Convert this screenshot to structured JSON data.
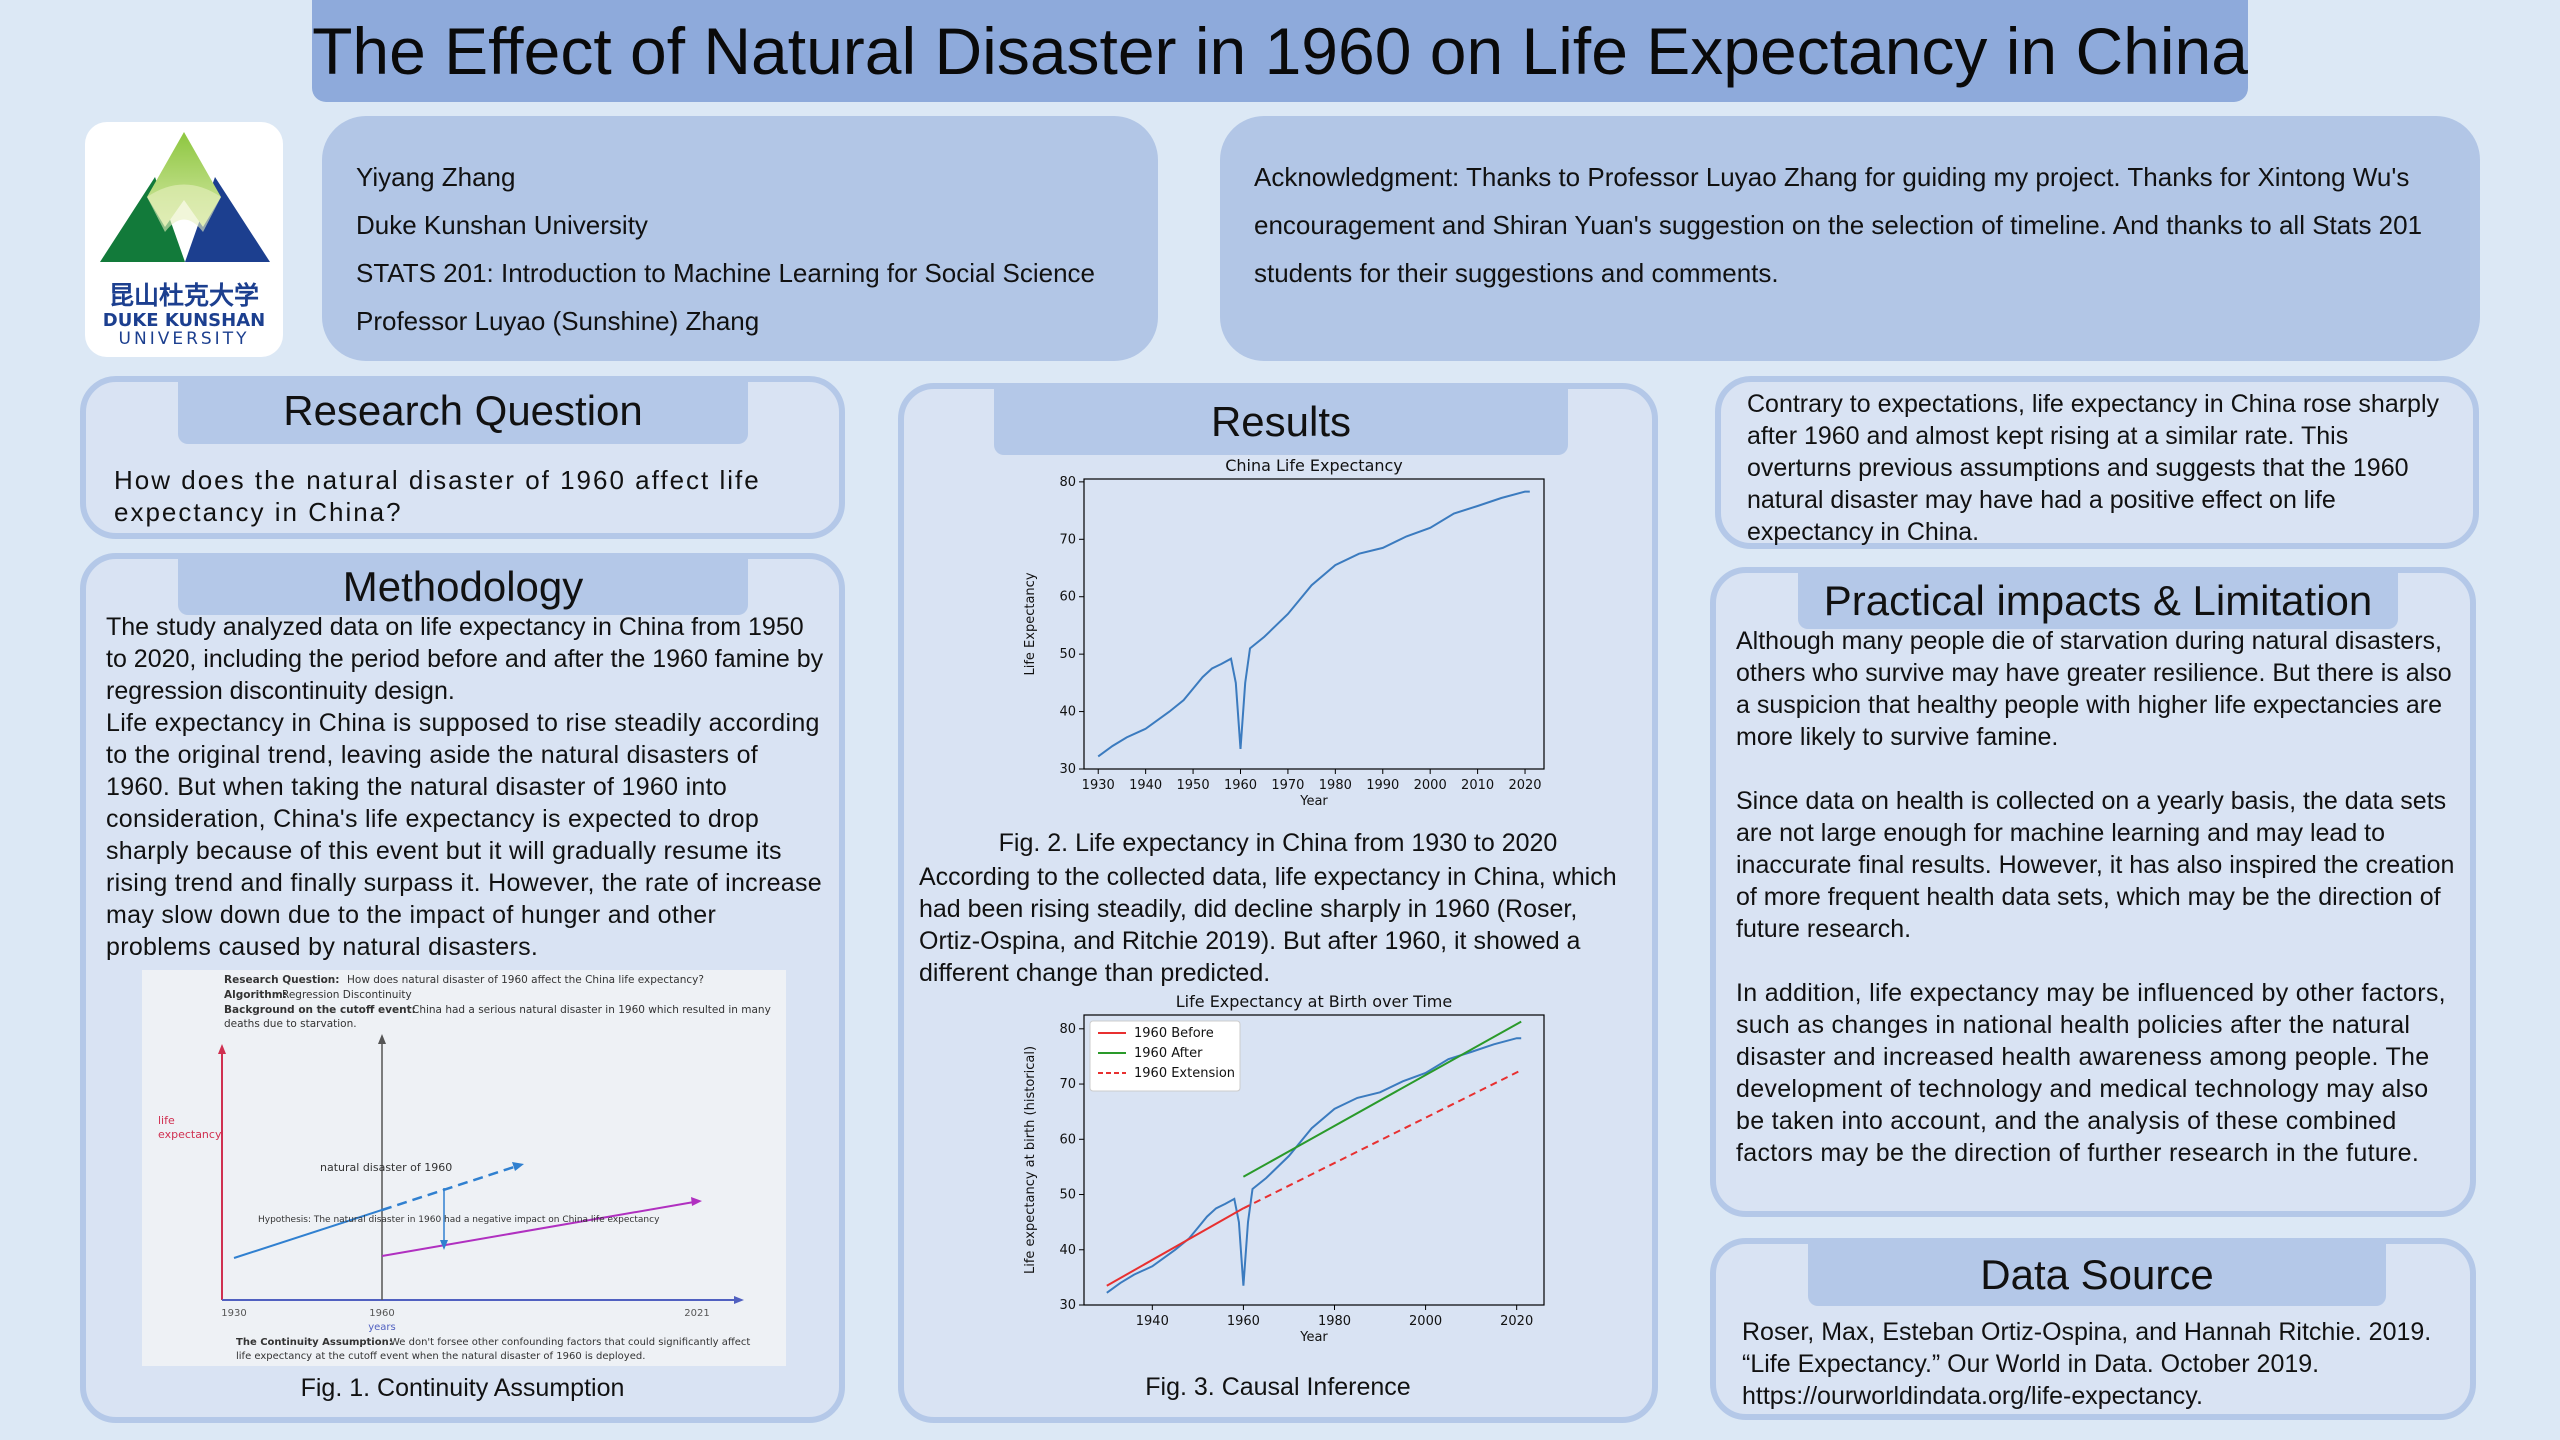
{
  "title": "The Effect of Natural Disaster in 1960 on Life Expectancy in China",
  "logo": {
    "chinese": "昆山杜克大学",
    "line1": "DUKE KUNSHAN",
    "line2": "UNIVERSITY"
  },
  "author": {
    "name": "Yiyang Zhang",
    "school": "Duke Kunshan University",
    "course": "STATS 201: Introduction to Machine Learning for Social Science",
    "professor": "Professor Luyao (Sunshine) Zhang"
  },
  "acknowledgment": "Acknowledgment: Thanks to Professor Luyao Zhang for guiding my project. Thanks for Xintong Wu's encouragement and Shiran Yuan's suggestion on the selection of timeline. And thanks to all Stats 201 students for their suggestions and comments.",
  "research_question": {
    "heading": "Research Question",
    "text": "How does the natural disaster of 1960 affect life expectancy in China?"
  },
  "methodology": {
    "heading": "Methodology",
    "p1": "The study analyzed data on life expectancy in China from 1950 to 2020, including the period before and after the 1960 famine by regression discontinuity design.",
    "p2": "Life expectancy in China is supposed to rise steadily according to the original trend, leaving aside the natural disasters of 1960. But when taking the natural disaster of 1960 into consideration, China's life expectancy is expected to drop sharply because of this event but it will gradually resume its rising trend and finally surpass it. However, the rate of increase may slow down due to the impact of hunger and other problems caused by natural disasters.",
    "fig1_caption": "Fig. 1. Continuity Assumption",
    "fig1": {
      "rq_label": "Research Question:",
      "rq": "How does natural disaster of 1960 affect the China life expectancy?",
      "algo_label": "Algorithm:",
      "algo": "Regression Discontinuity",
      "bg_label": "Background on the cutoff event:",
      "bg": "China had a serious natural disaster in 1960 which resulted in many",
      "bg2": "deaths due to starvation.",
      "ylabel1": "life",
      "ylabel2": "expectancy",
      "event": "natural disaster of 1960",
      "hypothesis": "Hypothesis: The natural disaster in 1960 had a negative impact on China life expectancy",
      "xticks": [
        "1930",
        "1960",
        "2021"
      ],
      "xlabel": "years",
      "cont_label": "The Continuity Assumption:",
      "cont": "We don't forsee other confounding factors that could significantly affect",
      "cont2": "life expectancy at the cutoff event when the natural disaster of 1960 is deployed."
    }
  },
  "results": {
    "heading": "Results",
    "fig2_caption": "Fig. 2. Life expectancy in China from 1930 to 2020",
    "text": "According to the collected data, life expectancy in China, which had been rising steadily, did decline sharply in 1960 (Roser, Ortiz-Ospina, and Ritchie 2019). But after 1960, it showed a different change than predicted.",
    "fig3_caption": "Fig. 3. Causal Inference"
  },
  "conclusion": "Contrary to expectations, life expectancy in China rose sharply after 1960 and almost kept rising at a similar rate. This overturns previous assumptions and suggests that the 1960 natural disaster may have had a positive effect on life expectancy in China.",
  "practical": {
    "heading": "Practical impacts & Limitation",
    "p1": "Although many people die of starvation during natural disasters, others who survive may have greater resilience. But there is also a suspicion that healthy people with higher life expectancies are more likely to survive famine.",
    "p2": "Since data on health is collected on a yearly basis, the data sets are not large enough for machine learning and may lead to inaccurate final results. However, it has also inspired the creation of more frequent health data sets, which may be the direction of future research.",
    "p3": "In addition, life expectancy may be influenced by other factors, such as changes in national health policies after the natural disaster and increased health awareness among people. The development of technology and medical technology may also be taken into account, and the analysis of these combined factors may be the direction of further research in the future."
  },
  "data_source": {
    "heading": "Data Source",
    "text": "Roser, Max, Esteban Ortiz-Ospina, and Hannah Ritchie. 2019. “Life Expectancy.” Our World in Data. October 2019. https://ourworldindata.org/life-expectancy."
  },
  "chart_data": [
    {
      "type": "line",
      "title": "China Life Expectancy",
      "xlabel": "Year",
      "ylabel": "Life Expectancy",
      "xlim": [
        1927,
        2024
      ],
      "ylim": [
        30,
        80.5
      ],
      "xticks": [
        1930,
        1940,
        1950,
        1960,
        1970,
        1980,
        1990,
        2000,
        2010,
        2020
      ],
      "yticks": [
        30,
        40,
        50,
        60,
        70,
        80
      ],
      "color": "#3b7bbf",
      "series": [
        {
          "values": [
            [
              1930,
              32.2
            ],
            [
              1933,
              34
            ],
            [
              1936,
              35.5
            ],
            [
              1940,
              37
            ],
            [
              1945,
              40
            ],
            [
              1948,
              42
            ],
            [
              1950,
              44
            ],
            [
              1952,
              46
            ],
            [
              1954,
              47.5
            ],
            [
              1956,
              48.3
            ],
            [
              1958,
              49.2
            ],
            [
              1959,
              45
            ],
            [
              1960,
              33.5
            ],
            [
              1961,
              45
            ],
            [
              1962,
              51
            ],
            [
              1965,
              53
            ],
            [
              1970,
              57
            ],
            [
              1975,
              62
            ],
            [
              1980,
              65.5
            ],
            [
              1985,
              67.5
            ],
            [
              1990,
              68.5
            ],
            [
              1995,
              70.5
            ],
            [
              2000,
              72
            ],
            [
              2005,
              74.5
            ],
            [
              2010,
              75.8
            ],
            [
              2015,
              77.2
            ],
            [
              2020,
              78.3
            ],
            [
              2021,
              78.3
            ]
          ]
        }
      ]
    },
    {
      "type": "line",
      "title": "Life Expectancy at Birth over Time",
      "xlabel": "Year",
      "ylabel": "Life expectancy at birth (historical)",
      "xlim": [
        1925,
        2026
      ],
      "ylim": [
        30,
        82.5
      ],
      "xticks": [
        1940,
        1960,
        1980,
        2000,
        2020
      ],
      "yticks": [
        30,
        40,
        50,
        60,
        70,
        80
      ],
      "legend_position": "top-left",
      "series": [
        {
          "values": [
            [
              1930,
              32.2
            ],
            [
              1933,
              34
            ],
            [
              1936,
              35.5
            ],
            [
              1940,
              37
            ],
            [
              1945,
              40
            ],
            [
              1948,
              42
            ],
            [
              1950,
              44
            ],
            [
              1952,
              46
            ],
            [
              1954,
              47.5
            ],
            [
              1956,
              48.3
            ],
            [
              1958,
              49.2
            ],
            [
              1959,
              45
            ],
            [
              1960,
              33.5
            ],
            [
              1961,
              45
            ],
            [
              1962,
              51
            ],
            [
              1965,
              53
            ],
            [
              1970,
              57
            ],
            [
              1975,
              62
            ],
            [
              1980,
              65.5
            ],
            [
              1985,
              67.5
            ],
            [
              1990,
              68.5
            ],
            [
              1995,
              70.5
            ],
            [
              2000,
              72
            ],
            [
              2005,
              74.5
            ],
            [
              2010,
              75.8
            ],
            [
              2015,
              77.2
            ],
            [
              2020,
              78.3
            ],
            [
              2021,
              78.3
            ]
          ],
          "color": "#3b7bbf"
        },
        {
          "name": "1960 Before",
          "values": [
            [
              1930,
              33.5
            ],
            [
              1960,
              47.5
            ]
          ],
          "color": "#e83030",
          "dash": false
        },
        {
          "name": "1960 After",
          "values": [
            [
              1960,
              53.2
            ],
            [
              2021,
              81.3
            ]
          ],
          "color": "#2a9a2a",
          "dash": false
        },
        {
          "name": "1960 Extension",
          "values": [
            [
              1960,
              47.5
            ],
            [
              2021,
              72.5
            ]
          ],
          "color": "#e83030",
          "dash": true
        }
      ]
    }
  ]
}
